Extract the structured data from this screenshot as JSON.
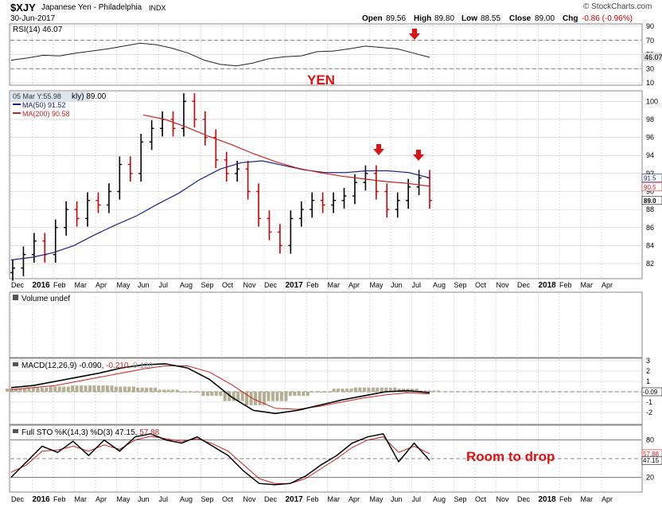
{
  "header": {
    "symbol": "$XJY",
    "name": "Japanese Yen - Philadelphia",
    "exchange": "INDX",
    "date": "30-Jun-2017",
    "brand": "© StockCharts.com",
    "open_label": "Open",
    "open_value": "89.56",
    "high_label": "High",
    "high_value": "89.80",
    "low_label": "Low",
    "low_value": "88.55",
    "close_label": "Close",
    "close_value": "89.00",
    "chg_label": "Chg",
    "chg_value": "-0.86 (-0.96%)"
  },
  "colors": {
    "up": "#000000",
    "down": "#cc0000",
    "ma50": "#1a237e",
    "ma200": "#cc2222",
    "annotation": "#dd1111",
    "grid": "#c8c8c8",
    "volume_bar": "#b5ae92"
  },
  "annotations": {
    "yen_label": "YEN",
    "drop_label": "Room to drop"
  },
  "date_axis": {
    "labels": [
      "Dec",
      "2016",
      "Feb",
      "Mar",
      "Apr",
      "May",
      "Jun",
      "Jul",
      "Aug",
      "Sep",
      "Oct",
      "Nov",
      "Dec",
      "2017",
      "Feb",
      "Mar",
      "Apr",
      "May",
      "Jun",
      "Jul",
      "Aug",
      "Sep",
      "Oct",
      "Nov",
      "Dec",
      "2018",
      "Feb",
      "Mar",
      "Apr"
    ],
    "bold_labels": [
      "2016",
      "2017",
      "2018"
    ]
  },
  "chart_data": [
    {
      "type": "line",
      "panel": "rsi",
      "title": "RSI(14) 46.07",
      "ylim": [
        10,
        90
      ],
      "ticks": [
        "90",
        "70",
        "50",
        "30",
        "10"
      ],
      "reference_lines": [
        70,
        30
      ],
      "last_value_label": "46.07",
      "series": [
        {
          "name": "RSI(14)",
          "values": [
            42,
            45,
            49,
            48,
            52,
            55,
            58,
            62,
            66,
            64,
            59,
            52,
            42,
            36,
            34,
            38,
            44,
            47,
            48,
            54,
            55,
            58,
            62,
            60,
            58,
            52,
            46
          ]
        }
      ]
    },
    {
      "type": "ohlc",
      "panel": "price",
      "legend_overlay": "05 Mar Y:55.98",
      "legend_label": "kly) 89.00",
      "ylim": [
        80.5,
        101
      ],
      "ticks": [
        "100",
        "98",
        "96",
        "94",
        "92",
        "90",
        "88",
        "86",
        "84",
        "82"
      ],
      "right_value_labels": [
        "91.5",
        "90.5",
        "89.0"
      ],
      "series": [
        {
          "name": "$XJY",
          "close": [
            81.5,
            83,
            84.5,
            83,
            86,
            88,
            87,
            89,
            88.5,
            90,
            93,
            92,
            95.5,
            97,
            98,
            97,
            100,
            98,
            96,
            93.5,
            92,
            92.5,
            90,
            87,
            85.5,
            84,
            87,
            88,
            89,
            88.5,
            89,
            89.5,
            91,
            92,
            90,
            88,
            89,
            90.5,
            91.5,
            89
          ]
        },
        {
          "name": "MA(50) 91.52",
          "values": [
            82.4,
            82.7,
            83.2,
            84.0,
            85.2,
            86.3,
            87.3,
            88.6,
            89.8,
            91.3,
            92.5,
            93.2,
            93.4,
            92.9,
            92.4,
            92.1,
            92.1,
            92.3,
            92.3,
            92.1,
            91.5
          ]
        },
        {
          "name": "MA(200) 90.58",
          "values": [
            98.5,
            98.0,
            97.1,
            96.1,
            95.2,
            94.2,
            93.3,
            92.6,
            92.1,
            91.7,
            91.4,
            91.1,
            90.9,
            90.58
          ]
        }
      ]
    },
    {
      "type": "bar",
      "panel": "volume",
      "title": "Volume undef",
      "series": []
    },
    {
      "type": "line",
      "panel": "macd",
      "title_main": "MACD(12,26,9) -0.090, ",
      "title_signal": "-0.210",
      "title_hist": ", 0.120",
      "ylim": [
        -3,
        3
      ],
      "ticks": [
        "3",
        "2",
        "1",
        "0",
        "-1",
        "-2"
      ],
      "last_value_label": "-0.09",
      "series": [
        {
          "name": "MACD",
          "values": [
            0.4,
            0.6,
            1.0,
            1.4,
            1.8,
            2.3,
            2.6,
            2.7,
            2.3,
            1.2,
            -0.5,
            -1.8,
            -2.1,
            -1.8,
            -1.3,
            -0.8,
            -0.4,
            0.0,
            0.1,
            -0.09
          ]
        },
        {
          "name": "Signal",
          "values": [
            0.2,
            0.4,
            0.6,
            1.0,
            1.4,
            1.8,
            2.2,
            2.5,
            2.5,
            1.9,
            0.7,
            -0.7,
            -1.6,
            -1.7,
            -1.4,
            -1.0,
            -0.6,
            -0.3,
            -0.1,
            -0.21
          ]
        },
        {
          "name": "Histogram",
          "values": [
            0.3,
            0.4,
            0.5,
            0.6,
            0.6,
            0.5,
            0.4,
            0.2,
            0.0,
            -0.4,
            -0.9,
            -1.3,
            -0.9,
            -0.4,
            0.0,
            0.3,
            0.4,
            0.4,
            0.3,
            0.12
          ]
        }
      ]
    },
    {
      "type": "line",
      "panel": "sto",
      "title_main": "Full STO %K(14,3) %D(3) 47.15, ",
      "title_signal": "57.88",
      "ylim": [
        0,
        100
      ],
      "ticks": [
        "80",
        "50",
        "20"
      ],
      "right_value_labels": [
        "57.88",
        "47.15"
      ],
      "series": [
        {
          "name": "%K",
          "values": [
            20,
            45,
            70,
            60,
            78,
            55,
            80,
            62,
            85,
            90,
            80,
            75,
            85,
            70,
            55,
            30,
            10,
            8,
            10,
            22,
            40,
            55,
            75,
            85,
            90,
            45,
            75,
            47
          ]
        },
        {
          "name": "%D",
          "values": [
            28,
            40,
            62,
            64,
            70,
            62,
            72,
            65,
            80,
            86,
            82,
            78,
            82,
            74,
            62,
            40,
            18,
            10,
            10,
            18,
            34,
            50,
            68,
            80,
            85,
            60,
            70,
            58
          ]
        }
      ]
    }
  ]
}
